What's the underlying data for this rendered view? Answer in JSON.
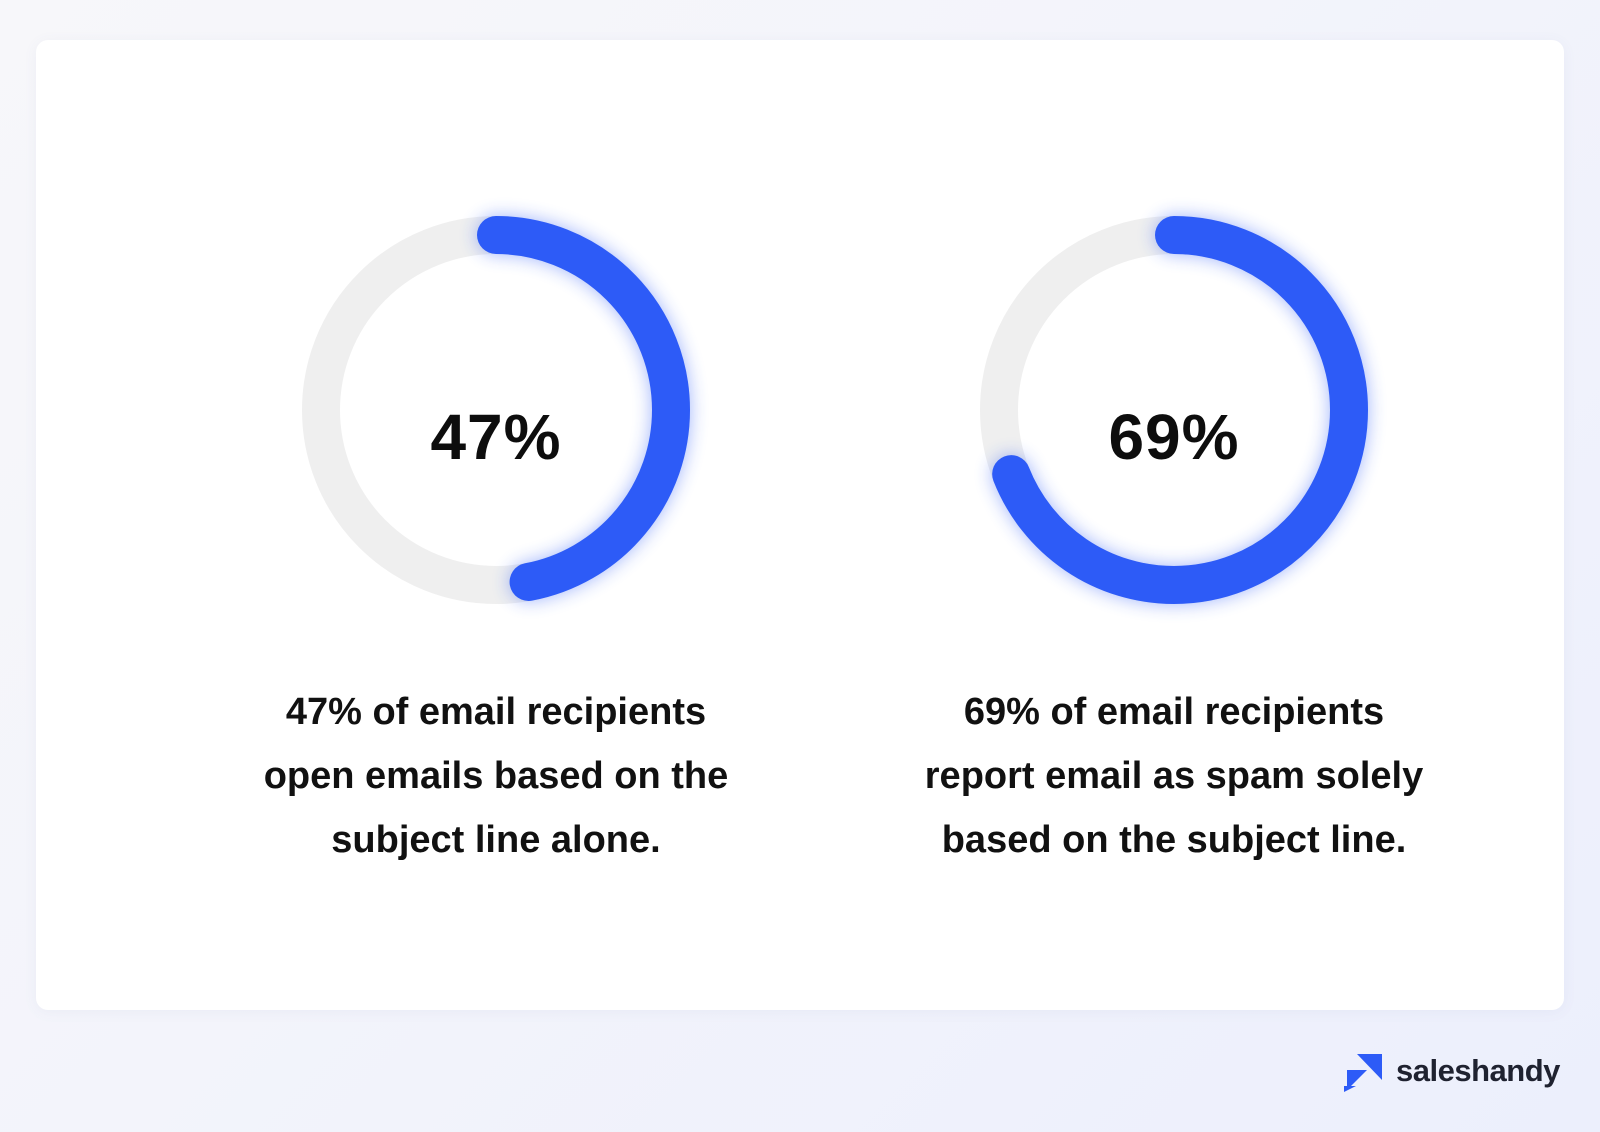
{
  "chart_data": [
    {
      "type": "donut",
      "value": 47,
      "max": 100,
      "center_label": "47%",
      "caption_lines": [
        "47% of email recipients",
        "open emails based on the",
        "subject line alone."
      ]
    },
    {
      "type": "donut",
      "value": 69,
      "max": 100,
      "center_label": "69%",
      "caption_lines": [
        "69% of email recipients",
        "report email as spam solely",
        "based on the subject line."
      ]
    }
  ],
  "colors": {
    "progress": "#2d5bf7",
    "track": "#efefef",
    "text": "#111111"
  },
  "brand": {
    "name": "saleshandy",
    "logo_icon": "saleshandy-logo-icon"
  }
}
